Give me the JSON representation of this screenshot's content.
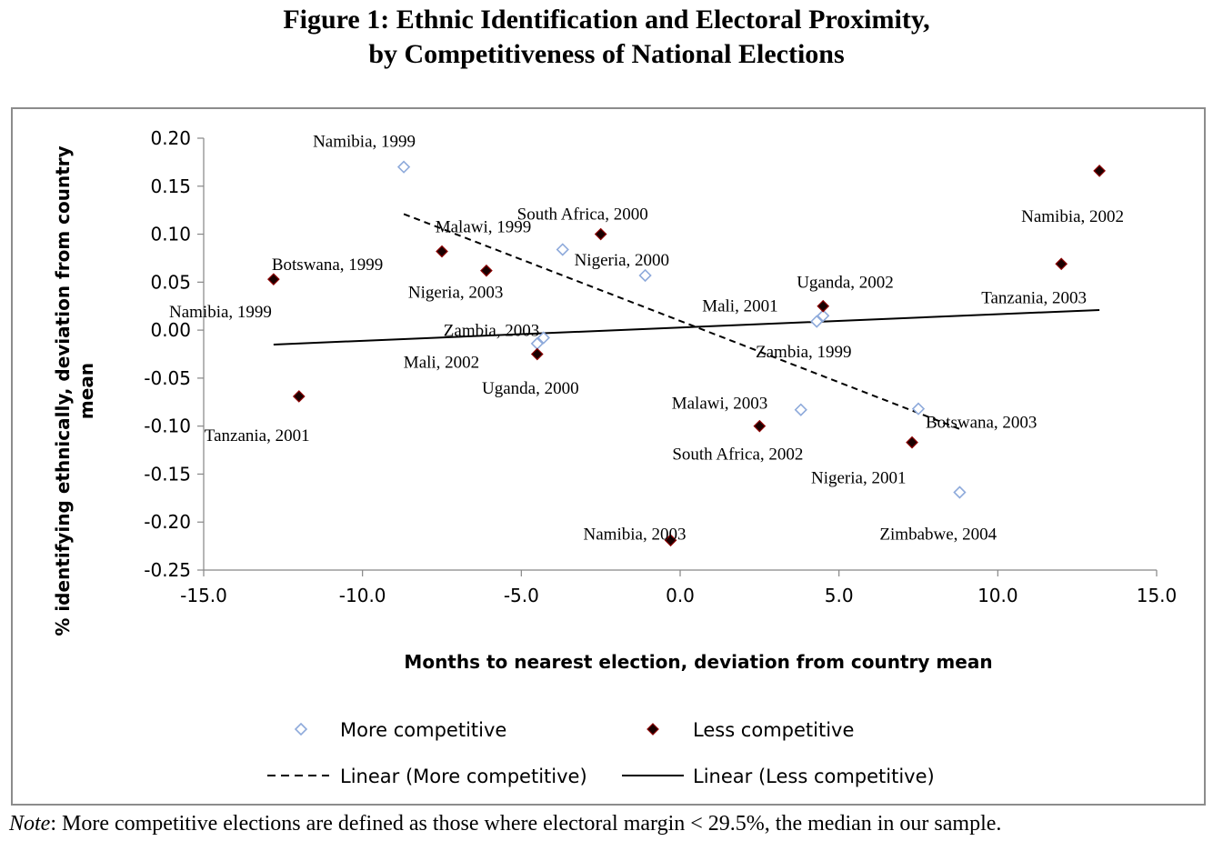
{
  "figure": {
    "title_line1": "Figure 1:  Ethnic Identification and Electoral Proximity,",
    "title_line2": "by Competitiveness of National Elections",
    "note_label": "Note",
    "note_text": ": More competitive elections are defined as those where electoral margin < 29.5%, the median in our sample."
  },
  "chart_data": {
    "type": "scatter",
    "title": "",
    "xlabel": "Months to nearest election, deviation from country mean",
    "ylabel": "% identifying ethnically, deviation from country mean",
    "xlim": [
      -15,
      15
    ],
    "ylim": [
      -0.25,
      0.2
    ],
    "xticks": [
      "-15.0",
      "-10.0",
      "-5.0",
      "0.0",
      "5.0",
      "10.0",
      "15.0"
    ],
    "yticks": [
      "0.20",
      "0.15",
      "0.10",
      "0.05",
      "0.00",
      "-0.05",
      "-0.10",
      "-0.15",
      "-0.20",
      "-0.25"
    ],
    "grid": false,
    "legend_position": "bottom",
    "series": [
      {
        "name": "More competitive",
        "marker": "hollow-diamond",
        "color": "#8eaadb",
        "points": [
          {
            "x": -8.7,
            "y": 0.17,
            "label": "Namibia, 1999"
          },
          {
            "x": -3.7,
            "y": 0.084,
            "label": "Malawi, 1999"
          },
          {
            "x": -1.1,
            "y": 0.057,
            "label": "Nigeria, 2000"
          },
          {
            "x": -4.3,
            "y": -0.008,
            "label": "Zambia, 2003"
          },
          {
            "x": -4.5,
            "y": -0.014,
            "label": ""
          },
          {
            "x": 4.3,
            "y": 0.009,
            "label": "Mali, 2001"
          },
          {
            "x": 4.5,
            "y": 0.015,
            "label": ""
          },
          {
            "x": 3.8,
            "y": -0.083,
            "label": "Malawi, 2003"
          },
          {
            "x": 7.5,
            "y": -0.082,
            "label": "Botswana, 2003"
          },
          {
            "x": 8.8,
            "y": -0.169,
            "label": "Zimbabwe, 2004"
          }
        ]
      },
      {
        "name": "Less competitive",
        "marker": "filled-diamond",
        "color": "#1a0000",
        "points": [
          {
            "x": -12.8,
            "y": 0.053,
            "label": "Botswana, 1999"
          },
          {
            "x": -12.0,
            "y": -0.069,
            "label": "Tanzania, 2001"
          },
          {
            "x": -7.5,
            "y": 0.082,
            "label": ""
          },
          {
            "x": -6.1,
            "y": 0.062,
            "label": "Nigeria, 2003"
          },
          {
            "x": -2.5,
            "y": 0.1,
            "label": "South Africa, 2000"
          },
          {
            "x": -4.5,
            "y": -0.025,
            "label": "Mali, 2002"
          },
          {
            "x": -0.3,
            "y": -0.219,
            "label": "Namibia, 2003"
          },
          {
            "x": 2.5,
            "y": -0.1,
            "label": "South Africa, 2002"
          },
          {
            "x": 4.5,
            "y": 0.025,
            "label": "Uganda, 2002"
          },
          {
            "x": 7.3,
            "y": -0.117,
            "label": "Nigeria, 2001"
          },
          {
            "x": 12.0,
            "y": 0.069,
            "label": "Tanzania, 2003"
          },
          {
            "x": 13.2,
            "y": 0.166,
            "label": "Namibia, 2002"
          }
        ]
      }
    ],
    "extra_labels": [
      "Namibia, 1999",
      "Uganda, 2000",
      "Zambia, 1999"
    ],
    "trendlines": [
      {
        "name": "Linear (More competitive)",
        "style": "dashed",
        "x": [
          -8.7,
          8.8
        ],
        "y": [
          0.121,
          -0.103
        ]
      },
      {
        "name": "Linear (Less competitive)",
        "style": "solid",
        "x": [
          -12.8,
          13.2
        ],
        "y": [
          -0.015,
          0.021
        ]
      }
    ]
  }
}
